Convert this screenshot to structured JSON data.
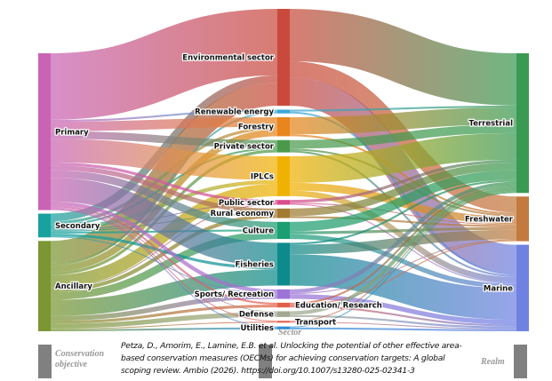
{
  "chart_data": {
    "type": "sankey",
    "title": "",
    "columns": [
      "Conservation objective",
      "Sector",
      "Realm"
    ],
    "nodes": {
      "objective": [
        {
          "id": "Primary",
          "color": "#c964b4"
        },
        {
          "id": "Secondary",
          "color": "#17a2a0"
        },
        {
          "id": "Ancillary",
          "color": "#7b9632"
        }
      ],
      "sector": [
        {
          "id": "Environmental sector",
          "color": "#c94a3c"
        },
        {
          "id": "Renewable energy",
          "color": "#3aa8d8"
        },
        {
          "id": "Forestry",
          "color": "#e8851c"
        },
        {
          "id": "Private sector",
          "color": "#4b9a4c"
        },
        {
          "id": "IPLCs",
          "color": "#f0b202"
        },
        {
          "id": "Public sector",
          "color": "#d94c8e"
        },
        {
          "id": "Rural economy",
          "color": "#a27a32"
        },
        {
          "id": "Culture",
          "color": "#1a9e72"
        },
        {
          "id": "Fisheries",
          "color": "#0d8a8c"
        },
        {
          "id": "Sports/ Recreation",
          "color": "#9c74d6"
        },
        {
          "id": "Education/ Research",
          "color": "#e2604a"
        },
        {
          "id": "Defense",
          "color": "#a3a893"
        },
        {
          "id": "Transport",
          "color": "#e2604a"
        },
        {
          "id": "Utilities",
          "color": "#2f8fd6"
        }
      ],
      "realm": [
        {
          "id": "Terrestrial",
          "color": "#3a9a52"
        },
        {
          "id": "Freshwater",
          "color": "#c47a3e"
        },
        {
          "id": "Marine",
          "color": "#6f82e2"
        }
      ]
    },
    "links_objective_sector": [
      [
        "Primary",
        "Environmental sector",
        70
      ],
      [
        "Secondary",
        "Environmental sector",
        8
      ],
      [
        "Ancillary",
        "Environmental sector",
        24
      ],
      [
        "Primary",
        "Renewable energy",
        2
      ],
      [
        "Ancillary",
        "Renewable energy",
        2
      ],
      [
        "Primary",
        "Forestry",
        10
      ],
      [
        "Secondary",
        "Forestry",
        3
      ],
      [
        "Ancillary",
        "Forestry",
        7
      ],
      [
        "Primary",
        "Private sector",
        8
      ],
      [
        "Secondary",
        "Private sector",
        2
      ],
      [
        "Ancillary",
        "Private sector",
        3
      ],
      [
        "Primary",
        "IPLCs",
        25
      ],
      [
        "Secondary",
        "IPLCs",
        4
      ],
      [
        "Ancillary",
        "IPLCs",
        13
      ],
      [
        "Primary",
        "Public sector",
        3
      ],
      [
        "Secondary",
        "Public sector",
        1
      ],
      [
        "Ancillary",
        "Public sector",
        1
      ],
      [
        "Primary",
        "Rural economy",
        5
      ],
      [
        "Secondary",
        "Rural economy",
        1
      ],
      [
        "Ancillary",
        "Rural economy",
        4
      ],
      [
        "Primary",
        "Culture",
        8
      ],
      [
        "Secondary",
        "Culture",
        2
      ],
      [
        "Ancillary",
        "Culture",
        8
      ],
      [
        "Primary",
        "Fisheries",
        25
      ],
      [
        "Secondary",
        "Fisheries",
        3
      ],
      [
        "Ancillary",
        "Fisheries",
        17
      ],
      [
        "Primary",
        "Sports/ Recreation",
        4
      ],
      [
        "Secondary",
        "Sports/ Recreation",
        1
      ],
      [
        "Ancillary",
        "Sports/ Recreation",
        5
      ],
      [
        "Primary",
        "Education/ Research",
        2
      ],
      [
        "Ancillary",
        "Education/ Research",
        3
      ],
      [
        "Primary",
        "Defense",
        1
      ],
      [
        "Ancillary",
        "Defense",
        5
      ],
      [
        "Primary",
        "Transport",
        1
      ],
      [
        "Ancillary",
        "Transport",
        1
      ],
      [
        "Primary",
        "Utilities",
        1
      ],
      [
        "Ancillary",
        "Utilities",
        2
      ]
    ],
    "links_sector_realm": [
      [
        "Environmental sector",
        "Terrestrial",
        55
      ],
      [
        "Environmental sector",
        "Freshwater",
        17
      ],
      [
        "Environmental sector",
        "Marine",
        30
      ],
      [
        "Renewable energy",
        "Terrestrial",
        2
      ],
      [
        "Renewable energy",
        "Marine",
        2
      ],
      [
        "Forestry",
        "Terrestrial",
        18
      ],
      [
        "Forestry",
        "Freshwater",
        2
      ],
      [
        "Private sector",
        "Terrestrial",
        9
      ],
      [
        "Private sector",
        "Freshwater",
        2
      ],
      [
        "Private sector",
        "Marine",
        2
      ],
      [
        "IPLCs",
        "Terrestrial",
        28
      ],
      [
        "IPLCs",
        "Freshwater",
        8
      ],
      [
        "IPLCs",
        "Marine",
        6
      ],
      [
        "Public sector",
        "Terrestrial",
        3
      ],
      [
        "Public sector",
        "Freshwater",
        1
      ],
      [
        "Public sector",
        "Marine",
        1
      ],
      [
        "Rural economy",
        "Terrestrial",
        8
      ],
      [
        "Rural economy",
        "Freshwater",
        2
      ],
      [
        "Culture",
        "Terrestrial",
        10
      ],
      [
        "Culture",
        "Freshwater",
        3
      ],
      [
        "Culture",
        "Marine",
        5
      ],
      [
        "Fisheries",
        "Terrestrial",
        2
      ],
      [
        "Fisheries",
        "Freshwater",
        10
      ],
      [
        "Fisheries",
        "Marine",
        33
      ],
      [
        "Sports/ Recreation",
        "Terrestrial",
        4
      ],
      [
        "Sports/ Recreation",
        "Freshwater",
        1
      ],
      [
        "Sports/ Recreation",
        "Marine",
        5
      ],
      [
        "Education/ Research",
        "Terrestrial",
        2
      ],
      [
        "Education/ Research",
        "Freshwater",
        1
      ],
      [
        "Education/ Research",
        "Marine",
        2
      ],
      [
        "Defense",
        "Terrestrial",
        4
      ],
      [
        "Defense",
        "Marine",
        2
      ],
      [
        "Transport",
        "Terrestrial",
        1
      ],
      [
        "Transport",
        "Marine",
        1
      ],
      [
        "Utilities",
        "Terrestrial",
        1
      ],
      [
        "Utilities",
        "Marine",
        2
      ]
    ]
  },
  "citation": "Petza, D., Amorim, E., Lamine, E.B. et al. Unlocking the potential of other effective area-based conservation measures (OECMs) for achieving conservation targets: A global scoping review. Ambio (2026). https://doi.org/10.1007/s13280-025-02341-3"
}
